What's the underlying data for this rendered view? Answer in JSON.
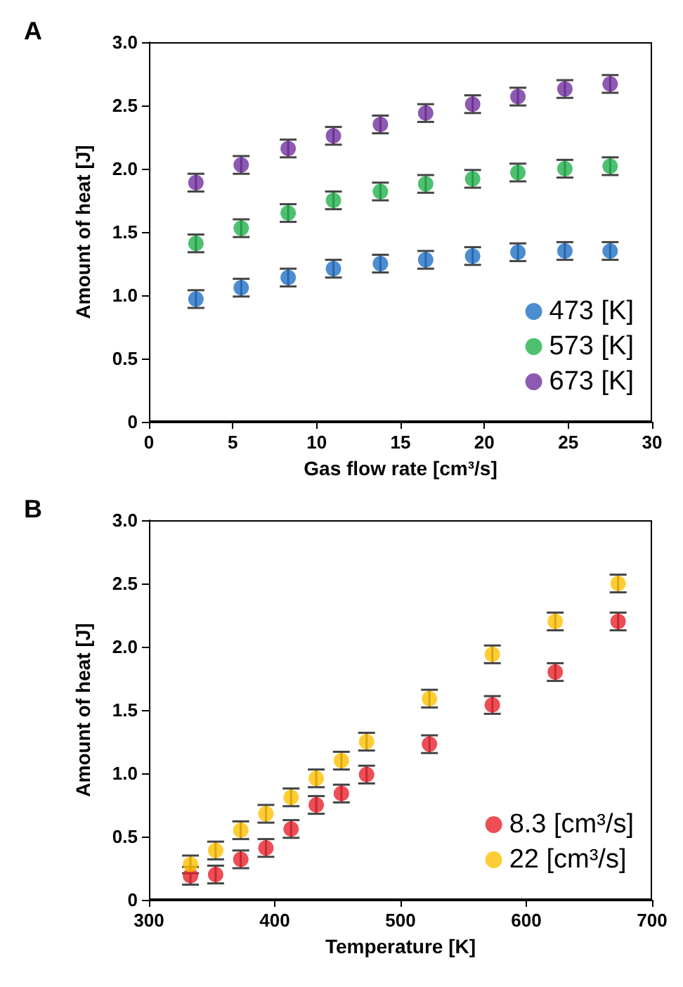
{
  "chart_data": [
    {
      "type": "scatter",
      "title": "A",
      "xlabel": "Gas flow rate [cm³/s]",
      "ylabel": "Amount of heat [J]",
      "x": [
        2.8,
        5.5,
        8.3,
        11,
        13.8,
        16.5,
        19.3,
        22,
        24.8,
        27.5
      ],
      "series": [
        {
          "name": "473 [K]",
          "color": "#1f6fc5",
          "values": [
            0.97,
            1.06,
            1.14,
            1.21,
            1.25,
            1.28,
            1.31,
            1.34,
            1.35,
            1.35
          ],
          "errors": [
            0.07,
            0.07,
            0.07,
            0.07,
            0.07,
            0.07,
            0.07,
            0.07,
            0.07,
            0.07
          ]
        },
        {
          "name": "573 [K]",
          "color": "#22b14c",
          "values": [
            1.41,
            1.53,
            1.65,
            1.75,
            1.82,
            1.88,
            1.92,
            1.97,
            2.0,
            2.02
          ],
          "errors": [
            0.07,
            0.07,
            0.07,
            0.07,
            0.07,
            0.07,
            0.07,
            0.07,
            0.07,
            0.07
          ]
        },
        {
          "name": "673 [K]",
          "color": "#7030a0",
          "values": [
            1.89,
            2.03,
            2.16,
            2.26,
            2.35,
            2.44,
            2.51,
            2.57,
            2.63,
            2.67
          ],
          "errors": [
            0.07,
            0.07,
            0.07,
            0.07,
            0.07,
            0.07,
            0.07,
            0.07,
            0.07,
            0.07
          ]
        }
      ],
      "xlim": [
        0,
        30
      ],
      "xticks": [
        0,
        5,
        10,
        15,
        20,
        25,
        30
      ],
      "ylim": [
        0,
        3
      ],
      "yticks": [
        0,
        {
          "value": 0.5,
          "label": "0.5"
        },
        {
          "value": 1,
          "label": "1.0"
        },
        {
          "value": 1.5,
          "label": "1.5"
        },
        {
          "value": 2,
          "label": "2.0"
        },
        {
          "value": 2.5,
          "label": "2.5"
        },
        {
          "value": 3,
          "label": "3.0"
        }
      ],
      "grid": false,
      "legend": "bottom right",
      "marker": "circle"
    },
    {
      "type": "scatter",
      "title": "B",
      "xlabel": "Temperature [K]",
      "ylabel": "Amount of heat [J]",
      "x": [
        333,
        353,
        373,
        393,
        413,
        433,
        453,
        473,
        523,
        573,
        623,
        673
      ],
      "series": [
        {
          "name": "8.3 [cm³/s]",
          "color": "#e8202a",
          "values": [
            0.19,
            0.2,
            0.32,
            0.41,
            0.56,
            0.75,
            0.84,
            0.99,
            1.23,
            1.54,
            1.8,
            2.2
          ],
          "errors": [
            0.07,
            0.07,
            0.07,
            0.07,
            0.07,
            0.07,
            0.07,
            0.07,
            0.07,
            0.07,
            0.07,
            0.07
          ]
        },
        {
          "name": "22 [cm³/s]",
          "color": "#ffc000",
          "values": [
            0.28,
            0.39,
            0.55,
            0.68,
            0.81,
            0.96,
            1.1,
            1.25,
            1.59,
            1.94,
            2.2,
            2.5
          ],
          "errors": [
            0.07,
            0.07,
            0.07,
            0.07,
            0.07,
            0.07,
            0.07,
            0.07,
            0.07,
            0.07,
            0.07,
            0.07
          ]
        }
      ],
      "xlim": [
        300,
        700
      ],
      "xticks": [
        300,
        400,
        500,
        600,
        700
      ],
      "ylim": [
        0,
        3
      ],
      "yticks": [
        0,
        {
          "value": 0.5,
          "label": "0.5"
        },
        {
          "value": 1,
          "label": "1.0"
        },
        {
          "value": 1.5,
          "label": "1.5"
        },
        {
          "value": 2,
          "label": "2.0"
        },
        {
          "value": 2.5,
          "label": "2.5"
        },
        {
          "value": 3,
          "label": "3.0"
        }
      ],
      "grid": false,
      "legend": "bottom right",
      "marker": "circle"
    }
  ]
}
